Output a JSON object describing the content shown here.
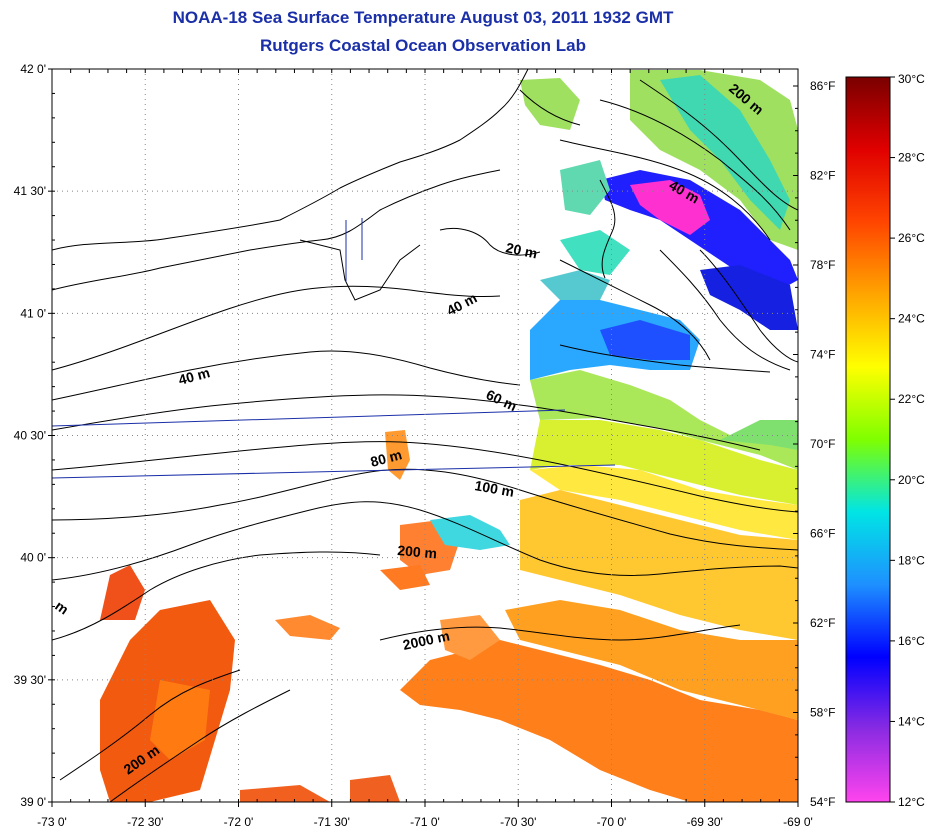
{
  "titles": {
    "line1": "NOAA-18 Sea Surface Temperature August 03, 2011 1932 GMT",
    "line2": "Rutgers Coastal Ocean Observation Lab"
  },
  "axes": {
    "lat_labels": [
      "42 0'",
      "41 30'",
      "41 0'",
      "40 30'",
      "40 0'",
      "39 30'",
      "39 0'"
    ],
    "lon_labels": [
      "-73 0'",
      "-72 30'",
      "-72 0'",
      "-71 30'",
      "-71 0'",
      "-70 30'",
      "-70 0'",
      "-69 30'",
      "-69 0'"
    ],
    "lat_range": [
      39.0,
      42.0
    ],
    "lon_range": [
      -73.0,
      -69.0
    ],
    "f_labels": [
      "86°F",
      "82°F",
      "78°F",
      "74°F",
      "70°F",
      "66°F",
      "62°F",
      "58°F",
      "54°F"
    ]
  },
  "colorbar": {
    "labels": [
      "30°C",
      "28°C",
      "26°C",
      "24°C",
      "22°C",
      "20°C",
      "18°C",
      "16°C",
      "14°C",
      "12°C"
    ],
    "range_c": [
      12,
      30
    ],
    "stops": [
      "#ff44ee",
      "#8a2be2",
      "#0000ff",
      "#1e90ff",
      "#00e5e5",
      "#7fff00",
      "#ffff00",
      "#ffa500",
      "#ff4500",
      "#e00000",
      "#7a0000"
    ]
  },
  "isobaths": [
    {
      "text": "200 m"
    },
    {
      "text": "40 m"
    },
    {
      "text": "20 m"
    },
    {
      "text": "40 m"
    },
    {
      "text": "40 m"
    },
    {
      "text": "60 m"
    },
    {
      "text": "80 m"
    },
    {
      "text": "100 m"
    },
    {
      "text": "200 m"
    },
    {
      "text": "2000 m"
    },
    {
      "text": "200 m"
    },
    {
      "text": "m"
    }
  ]
}
